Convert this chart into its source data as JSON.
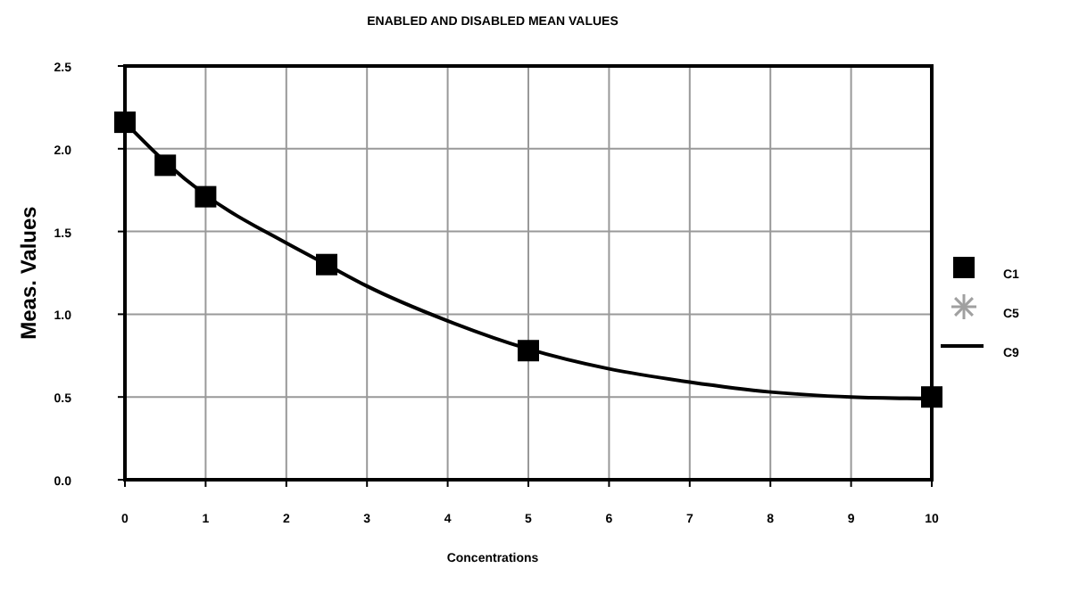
{
  "chart_data": {
    "type": "scatter",
    "title": "ENABLED AND DISABLED MEAN VALUES",
    "xlabel": "Concentrations",
    "ylabel": "Meas. Values",
    "xlim": [
      0,
      10
    ],
    "xticks": [
      0,
      1,
      2,
      3,
      4,
      5,
      6,
      7,
      8,
      9,
      10
    ],
    "ylim": [
      0,
      2.5
    ],
    "yticks": [
      {
        "value": 0,
        "label": "0.0"
      },
      {
        "value": 0.5,
        "label": "0.5"
      },
      {
        "value": 1,
        "label": "1.0"
      },
      {
        "value": 1.5,
        "label": "1.5"
      },
      {
        "value": 2,
        "label": "2.0"
      },
      {
        "value": 2.5,
        "label": "2.5"
      }
    ],
    "grid": true,
    "legend": "right",
    "series": [
      {
        "name": "C1",
        "marker": "square",
        "color": "#000000",
        "x": [
          0,
          0.5,
          1,
          2.5,
          5,
          10
        ],
        "values": [
          2.16,
          1.9,
          1.71,
          1.3,
          0.78,
          0.5
        ]
      },
      {
        "name": "C5",
        "marker": "star",
        "color": "#a0a0a0"
      },
      {
        "name": "C9",
        "type": "line",
        "marker": "none",
        "color": "#000000",
        "x": [
          0,
          0.5,
          1,
          2,
          2.5,
          3,
          4,
          5,
          6,
          7,
          8,
          9,
          10
        ],
        "values": [
          2.16,
          1.92,
          1.72,
          1.43,
          1.3,
          1.17,
          0.96,
          0.79,
          0.67,
          0.59,
          0.53,
          0.5,
          0.49
        ]
      }
    ]
  }
}
